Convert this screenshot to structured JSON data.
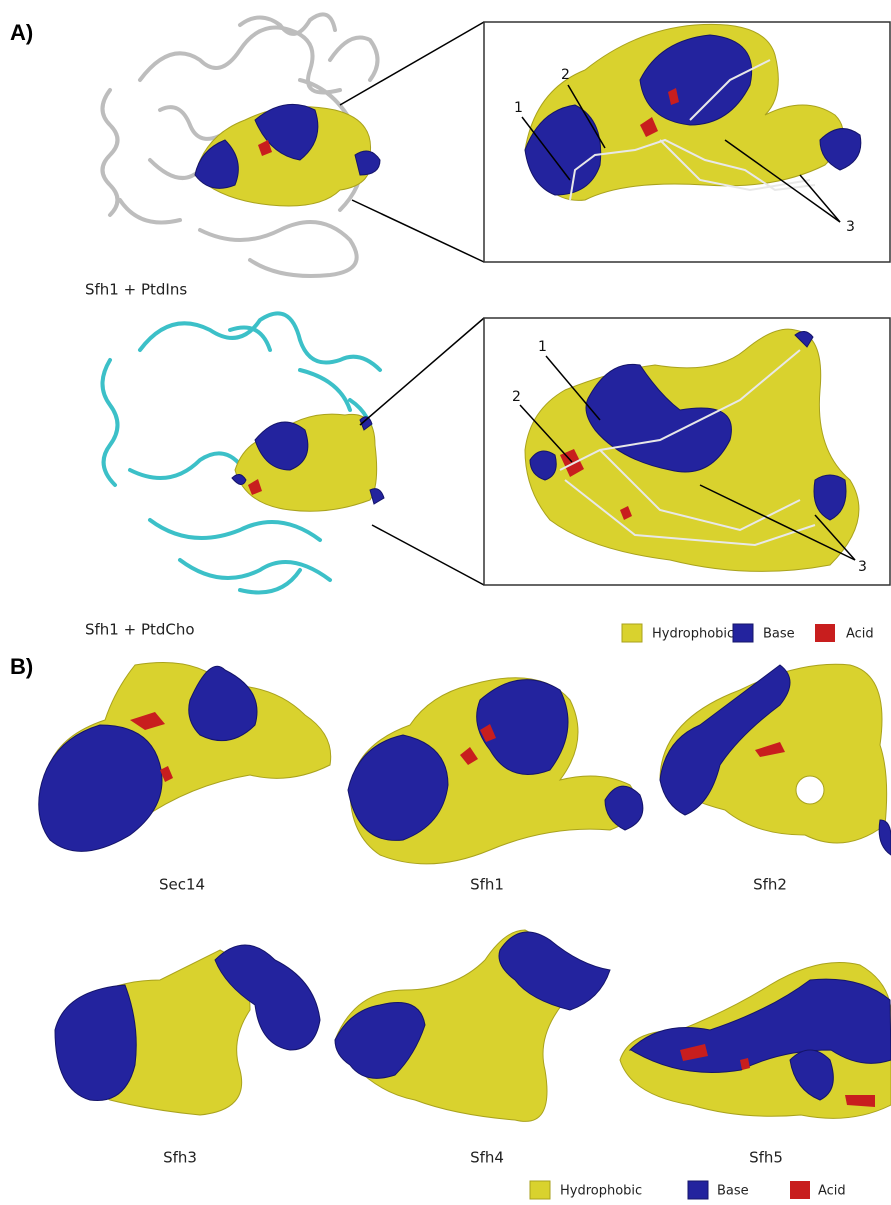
{
  "panel_a": {
    "label": "A)",
    "complexes": [
      {
        "caption": "Sfh1 + PtdIns",
        "callouts": [
          "1",
          "2",
          "3"
        ]
      },
      {
        "caption": "Sfh1 + PtdCho",
        "callouts": [
          "1",
          "2",
          "3"
        ]
      }
    ],
    "legend": [
      "Hydrophobic",
      "Base",
      "Acid"
    ]
  },
  "panel_b": {
    "label": "B)",
    "pockets": [
      "Sec14",
      "Sfh1",
      "Sfh2",
      "Sfh3",
      "Sfh4",
      "Sfh5"
    ],
    "legend": [
      "Hydrophobic",
      "Base",
      "Acid"
    ]
  }
}
